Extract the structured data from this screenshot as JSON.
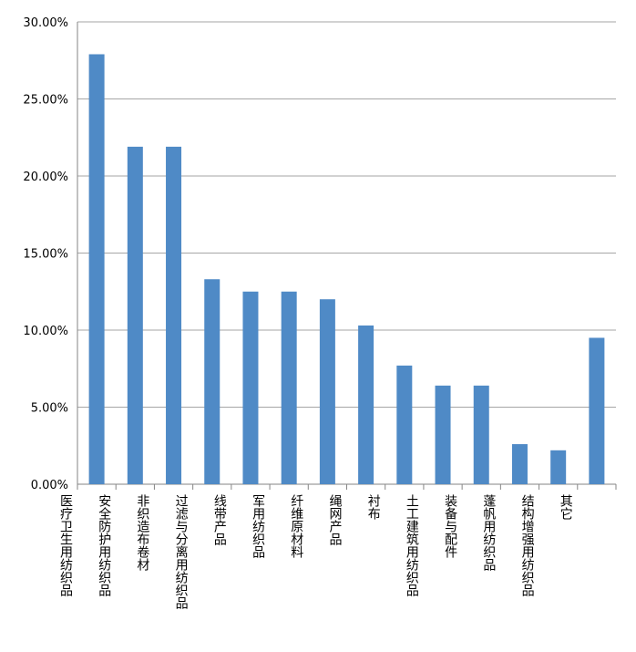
{
  "chart_data": {
    "type": "bar",
    "categories": [
      "医疗卫生用纺织品",
      "安全防护用纺织品",
      "非织造布卷材",
      "过滤与分离用纺织品",
      "线带产品",
      "军用纺织品",
      "纤维原材料",
      "绳网产品",
      "衬布",
      "土工建筑用纺织品",
      "装备与配件",
      "蓬帆用纺织品",
      "结构增强用纺织品",
      "其它"
    ],
    "values": [
      27.9,
      21.9,
      21.9,
      13.3,
      12.5,
      12.5,
      12.0,
      10.3,
      7.7,
      6.4,
      6.4,
      2.6,
      2.2,
      9.5
    ],
    "color": "#4f8ac6",
    "ylim": [
      0,
      30
    ],
    "yticks": [
      {
        "value": 0,
        "label": "0.00%"
      },
      {
        "value": 5,
        "label": "5.00%"
      },
      {
        "value": 10,
        "label": "10.00%"
      },
      {
        "value": 15,
        "label": "15.00%"
      },
      {
        "value": 20,
        "label": "20.00%"
      },
      {
        "value": 25,
        "label": "25.00%"
      },
      {
        "value": 30,
        "label": "30.00%"
      }
    ],
    "grid": true
  }
}
